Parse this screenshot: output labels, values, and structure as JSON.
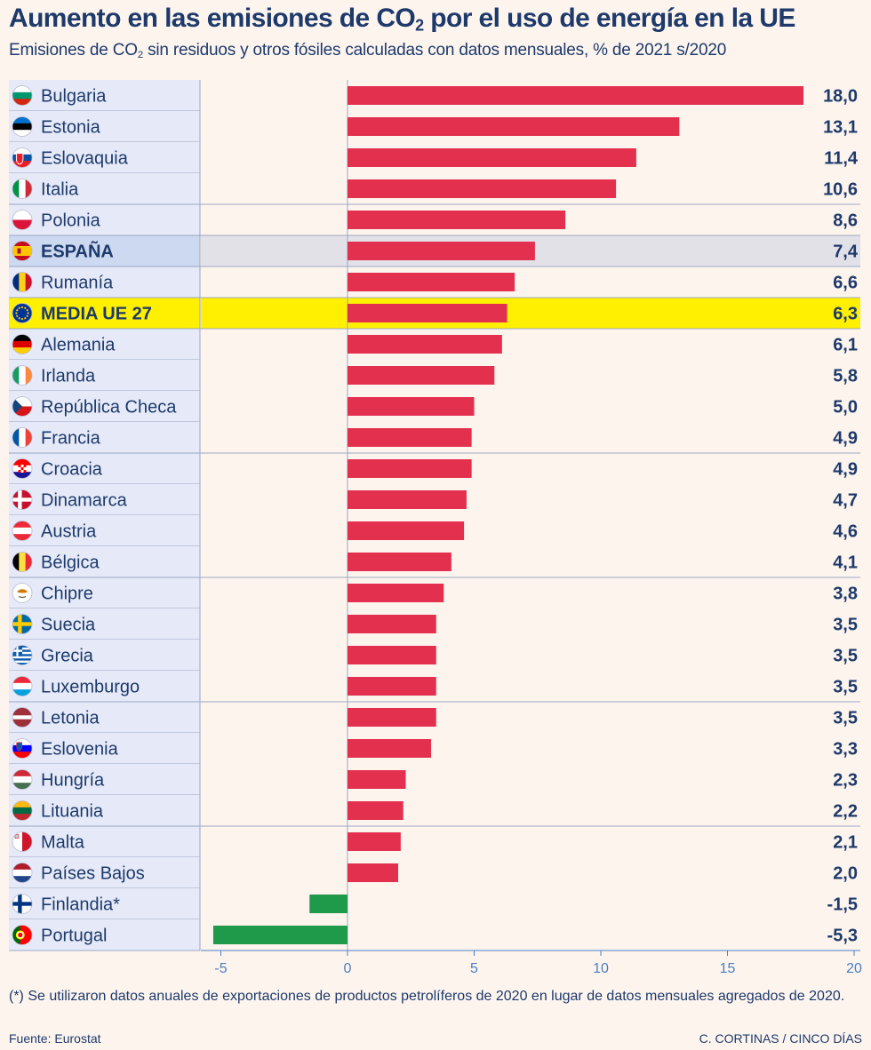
{
  "title": {
    "main": "Aumento en las emisiones de CO",
    "sub": "2",
    "rest": " por el uso de energía en la UE"
  },
  "subtitle": {
    "main": "Emisiones de CO",
    "sub": "2",
    "rest": " sin residuos y otros fósiles calculadas con datos mensuales, % de 2021 s/2020"
  },
  "footnote": "(*) Se utilizaron datos anuales de exportaciones de productos petrolíferos de 2020 en lugar de datos mensuales agregados de 2020.",
  "source": "Fuente: Eurostat",
  "credit": "C. CORTINAS / CINCO DÍAS",
  "colors": {
    "positive": "#e3304f",
    "negative": "#1e9a4a",
    "highlight_eu": "#ffef00",
    "highlight_spain": "#e2e1e8",
    "label_bg": "#e6eaf8",
    "text": "#1d3a6b",
    "tick": "#4a7fc4"
  },
  "chart_data": {
    "type": "bar",
    "orientation": "horizontal",
    "xlim": [
      -5.5,
      20
    ],
    "xticks": [
      "-5",
      "0",
      "5",
      "10",
      "15",
      "20"
    ],
    "xtick_values": [
      -5,
      0,
      5,
      10,
      15,
      20
    ],
    "categories": [
      "Bulgaria",
      "Estonia",
      "Eslovaquia",
      "Italia",
      "Polonia",
      "ESPAÑA",
      "Rumanía",
      "MEDIA UE 27",
      "Alemania",
      "Irlanda",
      "República Checa",
      "Francia",
      "Croacia",
      "Dinamarca",
      "Austria",
      "Bélgica",
      "Chipre",
      "Suecia",
      "Grecia",
      "Luxemburgo",
      "Letonia",
      "Eslovenia",
      "Hungría",
      "Lituania",
      "Malta",
      "Países Bajos",
      "Finlandia*",
      "Portugal"
    ],
    "values": [
      18.0,
      13.1,
      11.4,
      10.6,
      8.6,
      7.4,
      6.6,
      6.3,
      6.1,
      5.8,
      5.0,
      4.9,
      4.9,
      4.7,
      4.6,
      4.1,
      3.8,
      3.5,
      3.5,
      3.5,
      3.5,
      3.3,
      2.3,
      2.2,
      2.1,
      2.0,
      -1.5,
      -5.3
    ],
    "value_labels": [
      "18,0",
      "13,1",
      "11,4",
      "10,6",
      "8,6",
      "7,4",
      "6,6",
      "6,3",
      "6,1",
      "5,8",
      "5,0",
      "4,9",
      "4,9",
      "4,7",
      "4,6",
      "4,1",
      "3,8",
      "3,5",
      "3,5",
      "3,5",
      "3,5",
      "3,3",
      "2,3",
      "2,2",
      "2,1",
      "2,0",
      "-1,5",
      "-5,3"
    ],
    "flags": [
      "flag-bulgaria",
      "flag-estonia",
      "flag-slovakia",
      "flag-italy",
      "flag-poland",
      "flag-spain",
      "flag-romania",
      "flag-eu",
      "flag-germany",
      "flag-ireland",
      "flag-czechia",
      "flag-france",
      "flag-croatia",
      "flag-denmark",
      "flag-austria",
      "flag-belgium",
      "flag-cyprus",
      "flag-sweden",
      "flag-greece",
      "flag-luxembourg",
      "flag-latvia",
      "flag-slovenia",
      "flag-hungary",
      "flag-lithuania",
      "flag-malta",
      "flag-netherlands",
      "flag-finland",
      "flag-portugal"
    ],
    "highlight_eu": "MEDIA UE 27",
    "highlight_spain": "ESPAÑA"
  }
}
